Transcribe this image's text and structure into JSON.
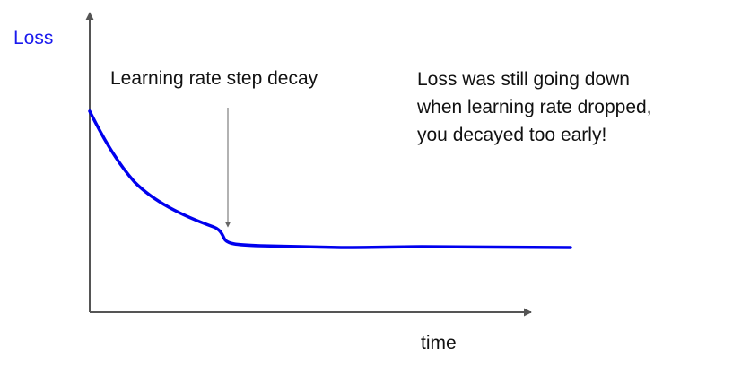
{
  "diagram": {
    "y_axis_label": "Loss",
    "x_axis_label": "time",
    "annotation": "Learning rate step decay",
    "note_lines": [
      "Loss was still going down",
      "when learning rate dropped,",
      "you decayed too early!"
    ],
    "colors": {
      "curve": "#0000ee",
      "y_label": "#1a1aee",
      "axes": "#555555",
      "pointer": "#666666",
      "text": "#111111"
    }
  }
}
